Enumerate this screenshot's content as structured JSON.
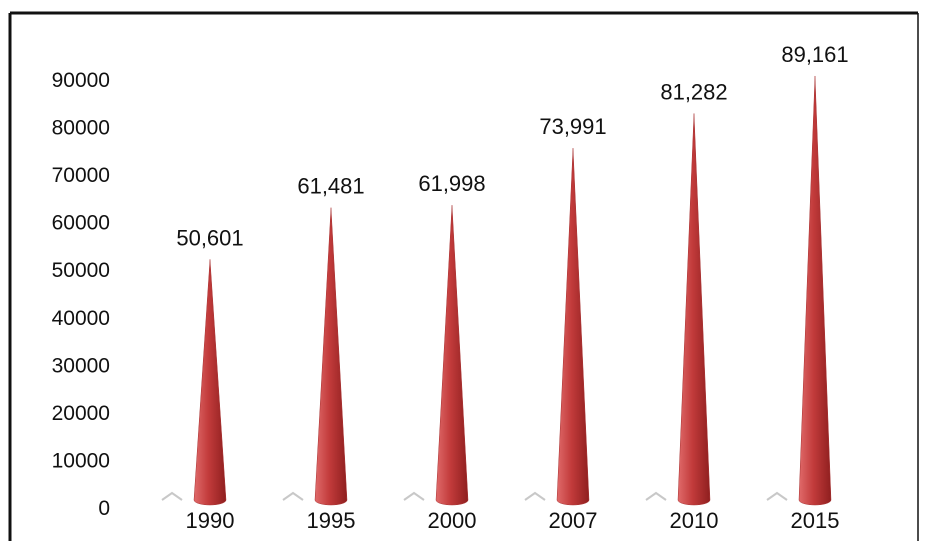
{
  "chart_data": {
    "type": "bar",
    "bar_shape": "cone",
    "categories": [
      "1990",
      "1995",
      "2000",
      "2007",
      "2010",
      "2015"
    ],
    "values": [
      50601,
      61481,
      61998,
      73991,
      81282,
      89161
    ],
    "data_labels": [
      "50,601",
      "61,481",
      "61,998",
      "73,991",
      "81,282",
      "89,161"
    ],
    "yticks": [
      "0",
      "10000",
      "20000",
      "30000",
      "40000",
      "50000",
      "60000",
      "70000",
      "80000",
      "90000"
    ],
    "ylim": [
      0,
      90000
    ],
    "grid": false,
    "legend": "none",
    "colors": {
      "bar_light": "#e06a6a",
      "bar_mid": "#c23b3b",
      "bar_dark": "#8f1f1f",
      "frame": "#111111"
    }
  }
}
